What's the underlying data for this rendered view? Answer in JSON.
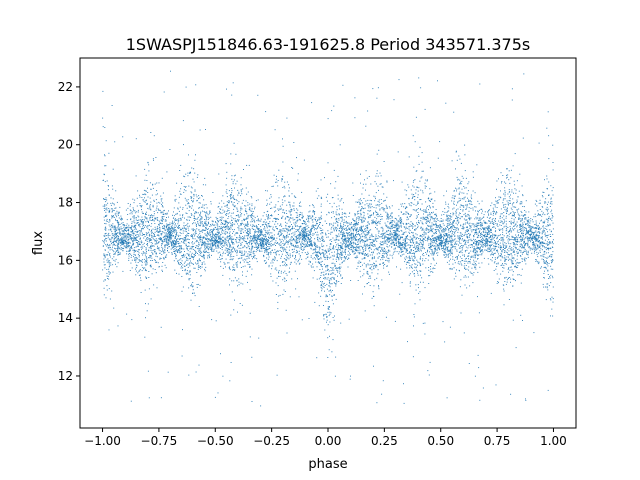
{
  "chart_data": {
    "type": "scatter",
    "title": "1SWASPJ151846.63-191625.8 Period 343571.375s",
    "xlabel": "phase",
    "ylabel": "flux",
    "xlim": [
      -1.1,
      1.1
    ],
    "ylim": [
      10.2,
      23.0
    ],
    "xticks": [
      -1.0,
      -0.75,
      -0.5,
      -0.25,
      0.0,
      0.25,
      0.5,
      0.75,
      1.0
    ],
    "xtick_labels": [
      "−1.00",
      "−0.75",
      "−0.50",
      "−0.25",
      "0.00",
      "0.25",
      "0.50",
      "0.75",
      "1.00"
    ],
    "yticks": [
      12,
      14,
      16,
      18,
      20,
      22
    ],
    "ytick_labels": [
      "12",
      "14",
      "16",
      "18",
      "20",
      "22"
    ],
    "grid": false,
    "legend": "none",
    "marker_color": "#1f77b4",
    "series": [
      {
        "x": [
          -1.0,
          -0.95,
          -0.9,
          -0.85,
          -0.8,
          -0.75,
          -0.7,
          -0.65,
          -0.6,
          -0.55,
          -0.5,
          -0.45,
          -0.4,
          -0.35,
          -0.3,
          -0.25,
          -0.2,
          -0.15,
          -0.1,
          -0.05,
          0.0,
          0.05,
          0.1,
          0.15,
          0.2,
          0.25,
          0.3,
          0.35,
          0.4,
          0.45,
          0.5,
          0.55,
          0.6,
          0.65,
          0.7,
          0.75,
          0.8,
          0.85,
          0.9,
          0.95,
          1.0
        ],
        "y_center": [
          16.7,
          16.9,
          16.7,
          16.8,
          16.9,
          16.8,
          16.9,
          16.7,
          16.9,
          16.8,
          16.7,
          16.9,
          16.8,
          16.9,
          16.7,
          16.8,
          16.9,
          16.8,
          16.9,
          16.6,
          15.5,
          16.6,
          16.8,
          16.9,
          16.7,
          16.8,
          16.9,
          16.7,
          16.8,
          16.9,
          16.7,
          16.8,
          16.9,
          16.7,
          16.8,
          16.9,
          16.7,
          16.8,
          16.9,
          16.7,
          16.6
        ],
        "y_upper": [
          19.5,
          18.2,
          17.3,
          18.5,
          19.2,
          18.6,
          17.3,
          18.7,
          19.3,
          18.5,
          17.3,
          18.5,
          19.0,
          18.4,
          17.3,
          18.6,
          19.4,
          18.5,
          17.4,
          18.3,
          18.4,
          18.2,
          17.4,
          18.5,
          19.3,
          18.5,
          17.4,
          18.4,
          19.2,
          18.6,
          17.4,
          18.5,
          19.3,
          18.6,
          17.4,
          18.5,
          19.2,
          18.5,
          17.4,
          18.3,
          19.3
        ],
        "y_lower": [
          14.0,
          15.8,
          16.4,
          15.6,
          14.9,
          15.6,
          16.4,
          15.5,
          14.9,
          15.6,
          16.4,
          15.6,
          14.9,
          15.6,
          16.4,
          15.5,
          14.8,
          15.6,
          16.4,
          15.4,
          13.3,
          15.4,
          16.3,
          15.6,
          14.9,
          15.6,
          16.4,
          15.6,
          15.0,
          15.6,
          16.4,
          15.6,
          15.0,
          15.6,
          16.4,
          15.6,
          14.9,
          15.6,
          16.4,
          15.6,
          14.2
        ]
      }
    ]
  }
}
